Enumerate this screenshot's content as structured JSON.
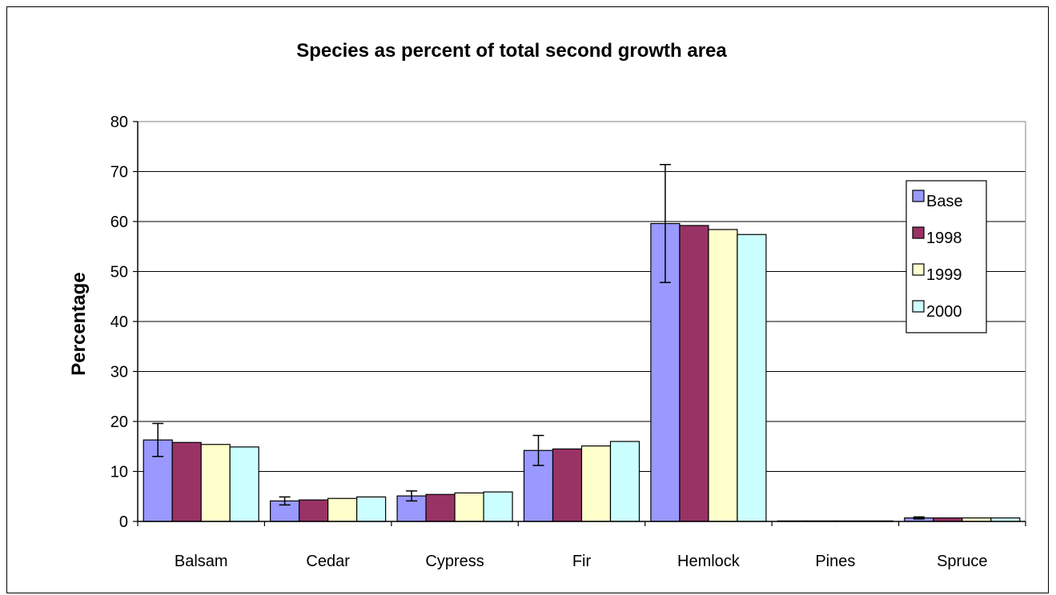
{
  "chart_data": {
    "type": "bar",
    "title": "Species as percent of total second growth area",
    "xlabel": "",
    "ylabel": "Percentage",
    "ylim": [
      0,
      80
    ],
    "yticks": [
      0,
      10,
      20,
      30,
      40,
      50,
      60,
      70,
      80
    ],
    "grid": true,
    "legend_position": "right",
    "categories": [
      "Balsam",
      "Cedar",
      "Cypress",
      "Fir",
      "Hemlock",
      "Pines",
      "Spruce"
    ],
    "series": [
      {
        "name": "Base",
        "color": "#9999FF",
        "values": [
          16.3,
          4.1,
          5.1,
          14.2,
          59.6,
          0.1,
          0.7
        ],
        "error": [
          3.3,
          0.8,
          1.0,
          3.0,
          11.8,
          0.0,
          0.2
        ]
      },
      {
        "name": "1998",
        "color": "#993366",
        "values": [
          15.8,
          4.3,
          5.4,
          14.5,
          59.2,
          0.1,
          0.7
        ]
      },
      {
        "name": "1999",
        "color": "#FFFFCC",
        "values": [
          15.4,
          4.6,
          5.7,
          15.1,
          58.4,
          0.1,
          0.7
        ]
      },
      {
        "name": "2000",
        "color": "#CCFFFF",
        "values": [
          14.9,
          4.9,
          5.9,
          16.0,
          57.4,
          0.1,
          0.7
        ]
      }
    ]
  }
}
